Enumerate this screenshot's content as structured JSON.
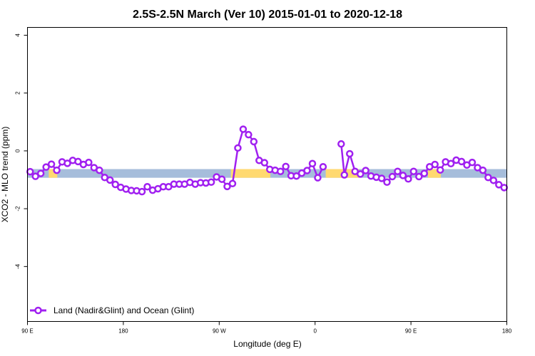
{
  "chart_data": {
    "type": "line",
    "title": "2.5S-2.5N March (Ver 10)   2015-01-01 to 2020-12-18",
    "xlabel": "Longitude (deg E)",
    "ylabel": "XCO2 - MLO trend (ppm)",
    "xlim": [
      90,
      540
    ],
    "ylim": [
      -5.9,
      4.27
    ],
    "x_ticks": [
      {
        "value": 90,
        "label": "90 E"
      },
      {
        "value": 180,
        "label": "180"
      },
      {
        "value": 270,
        "label": "90 W"
      },
      {
        "value": 360,
        "label": "0"
      },
      {
        "value": 450,
        "label": "90 E"
      },
      {
        "value": 540,
        "label": "180"
      }
    ],
    "y_ticks": [
      {
        "value": 4,
        "label": "4"
      },
      {
        "value": 2,
        "label": "2"
      },
      {
        "value": 0,
        "label": "0"
      },
      {
        "value": -2,
        "label": "-2"
      },
      {
        "value": -4,
        "label": "-4"
      }
    ],
    "grid": false,
    "legend_position": "bottom-left",
    "series": [
      {
        "name": "Land (Nadir&Glint) and Ocean (Glint)",
        "color": "#a020f0",
        "segments": [
          {
            "x": [
              92.5,
              97.5,
              102.5,
              107.5,
              112.5,
              117.5,
              122.5,
              127.5,
              132.5,
              137.5,
              142.5,
              147.5,
              152.5,
              157.5,
              162.5,
              167.5,
              172.5,
              177.5,
              182.5,
              187.5,
              192.5,
              197.5,
              202.5,
              207.5,
              212.5,
              217.5,
              222.5,
              227.5,
              232.5,
              237.5,
              242.5,
              247.5,
              252.5,
              257.5,
              262.5,
              267.5,
              272.5,
              277.5,
              282.5,
              287.5,
              292.5,
              297.5,
              302.5,
              307.5,
              312.5,
              317.5,
              322.5,
              327.5,
              332.5,
              337.5,
              342.5,
              347.5,
              352.5,
              357.5,
              362.5,
              367.5
            ],
            "y": [
              -0.72,
              -0.88,
              -0.78,
              -0.56,
              -0.46,
              -0.67,
              -0.38,
              -0.43,
              -0.33,
              -0.37,
              -0.47,
              -0.4,
              -0.58,
              -0.67,
              -0.92,
              -1.01,
              -1.16,
              -1.26,
              -1.32,
              -1.37,
              -1.38,
              -1.41,
              -1.24,
              -1.36,
              -1.31,
              -1.24,
              -1.24,
              -1.15,
              -1.15,
              -1.15,
              -1.09,
              -1.15,
              -1.1,
              -1.11,
              -1.08,
              -0.9,
              -0.98,
              -1.23,
              -1.13,
              0.1,
              0.75,
              0.56,
              0.32,
              -0.33,
              -0.41,
              -0.64,
              -0.67,
              -0.71,
              -0.54,
              -0.86,
              -0.87,
              -0.77,
              -0.68,
              -0.44,
              -0.93,
              -0.55
            ]
          },
          {
            "x": [
              384.5,
              387.5,
              392.5,
              397.5,
              402.5,
              407.5,
              412.5,
              417.5,
              422.5,
              427.5,
              432.5,
              437.5,
              442.5,
              447.5,
              452.5,
              457.5,
              462.5,
              467.5,
              472.5,
              477.5,
              482.5,
              487.5,
              492.5,
              497.5,
              502.5,
              507.5,
              512.5,
              517.5,
              522.5,
              527.5,
              532.5,
              537.5
            ],
            "y": [
              0.24,
              -0.83,
              -0.1,
              -0.71,
              -0.8,
              -0.68,
              -0.87,
              -0.91,
              -0.95,
              -1.08,
              -0.89,
              -0.71,
              -0.85,
              -0.97,
              -0.71,
              -0.89,
              -0.78,
              -0.55,
              -0.47,
              -0.66,
              -0.38,
              -0.44,
              -0.32,
              -0.37,
              -0.49,
              -0.4,
              -0.58,
              -0.67,
              -0.92,
              -1.02,
              -1.17,
              -1.27
            ]
          }
        ]
      }
    ],
    "background_band": {
      "y_range": [
        -0.93,
        -0.63
      ],
      "ocean_color": "#a6bddb",
      "land_color": "#ffd970",
      "land_lon_ranges": [
        [
          110,
          118
        ],
        [
          281,
          318
        ],
        [
          370,
          401
        ],
        [
          466,
          478
        ]
      ]
    }
  }
}
